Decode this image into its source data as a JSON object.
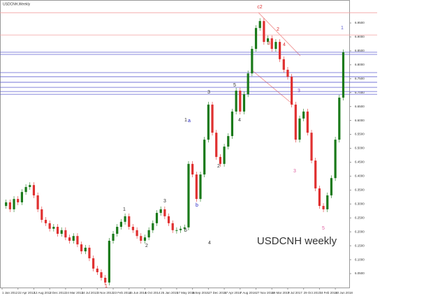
{
  "chart_data": {
    "type": "candlestick",
    "title": "USDCNH,Weekly",
    "watermark": "USDCNH weekly",
    "categories": [
      "1 Jan 2012",
      null,
      null,
      null,
      "22 Apr 2012",
      null,
      null,
      null,
      "12 Aug 2012",
      null,
      null,
      null,
      "2 Dec 2012",
      null,
      null,
      null,
      "24 Mar 2013",
      null,
      null,
      null,
      "14 Jul 2013",
      null,
      null,
      null,
      "3 Nov 2013",
      null,
      null,
      null,
      "23 Feb 2014",
      null,
      null,
      null,
      "15 Jun 2014",
      null,
      null,
      null,
      "5 Oct 2014",
      null,
      null,
      null,
      "25 Jan 2015",
      null,
      null,
      null,
      "17 May 2015",
      null,
      null,
      null,
      "6 Sep 2015",
      null,
      null,
      null,
      "27 Dec 2015",
      null,
      null,
      null,
      "17 Apr 2016",
      null,
      null,
      null,
      "7 Aug 2016",
      null,
      null,
      null,
      "27 Nov 2016",
      null,
      null,
      null,
      "19 Mar 2017",
      null,
      null,
      null,
      "9 Jul 2017",
      null,
      null,
      null,
      "29 Oct 2017",
      null,
      null,
      null,
      "18 Feb 2018",
      null,
      null,
      null,
      "10 Jun 2018",
      null,
      null
    ],
    "series": [
      {
        "name": "USDCNH",
        "up_color": "#1a7a1a",
        "down_color": "#e03030",
        "values": [
          6.293,
          6.306,
          6.281,
          6.318,
          6.306,
          6.343,
          6.361,
          6.368,
          6.331,
          6.281,
          6.243,
          6.231,
          6.211,
          6.218,
          6.193,
          6.206,
          6.18,
          6.168,
          6.185,
          6.155,
          6.13,
          6.143,
          6.105,
          6.068,
          6.055,
          6.035,
          6.018,
          6.168,
          6.193,
          6.218,
          6.236,
          6.256,
          6.218,
          6.206,
          6.185,
          6.168,
          6.18,
          6.206,
          6.231,
          6.268,
          6.281,
          6.256,
          6.231,
          6.206,
          6.206,
          6.211,
          6.216,
          6.444,
          6.406,
          6.318,
          6.406,
          6.531,
          6.657,
          6.556,
          6.469,
          6.444,
          6.506,
          6.544,
          6.632,
          6.707,
          6.632,
          6.694,
          6.769,
          6.857,
          6.932,
          6.957,
          6.882,
          6.895,
          6.857,
          6.882,
          6.82,
          6.782,
          6.757,
          6.657,
          6.531,
          6.607,
          6.632,
          6.556,
          6.456,
          6.356,
          6.293,
          6.281,
          6.331,
          6.393,
          6.531,
          6.682,
          6.845
        ]
      }
    ],
    "ylim": [
      6.0,
      7.0
    ],
    "yticks": [
      {
        "value": 6.05,
        "label": "6.0500"
      },
      {
        "value": 6.1,
        "label": "6.1000"
      },
      {
        "value": 6.15,
        "label": "6.1500"
      },
      {
        "value": 6.2,
        "label": "6.2000"
      },
      {
        "value": 6.25,
        "label": "6.2500"
      },
      {
        "value": 6.3,
        "label": "6.3000"
      },
      {
        "value": 6.35,
        "label": "6.3500"
      },
      {
        "value": 6.4,
        "label": "6.4000"
      },
      {
        "value": 6.45,
        "label": "6.4500"
      },
      {
        "value": 6.5,
        "label": "6.5000"
      },
      {
        "value": 6.55,
        "label": "6.5500"
      },
      {
        "value": 6.6,
        "label": "6.6000"
      },
      {
        "value": 6.65,
        "label": "6.6500"
      },
      {
        "value": 6.7,
        "label": "6.7000"
      },
      {
        "value": 6.75,
        "label": "6.7500"
      },
      {
        "value": 6.8,
        "label": "6.8000"
      },
      {
        "value": 6.85,
        "label": "6.8500"
      },
      {
        "value": 6.9,
        "label": "6.9000"
      },
      {
        "value": 6.95,
        "label": "6.9500"
      }
    ],
    "levels": [
      {
        "value": 6.987,
        "color": "#f2a0a0"
      },
      {
        "value": 6.907,
        "color": "#f2a0a0"
      },
      {
        "value": 6.845,
        "color": "#6060d0"
      },
      {
        "value": 6.837,
        "color": "#6060d0"
      },
      {
        "value": 6.772,
        "color": "#6060d0"
      },
      {
        "value": 6.757,
        "color": "#6060d0"
      },
      {
        "value": 6.737,
        "color": "#6060d0"
      },
      {
        "value": 6.719,
        "color": "#6060d0"
      },
      {
        "value": 6.704,
        "color": "#6060d0"
      },
      {
        "value": 6.694,
        "color": "#6060d0"
      }
    ],
    "annotations": [
      "1",
      "1",
      "2",
      "3",
      "4",
      "5",
      "a",
      "b",
      "1",
      "2",
      "3",
      "4",
      "5",
      "c2",
      "2",
      "3",
      "4",
      "3",
      "3",
      "5",
      "1"
    ]
  }
}
